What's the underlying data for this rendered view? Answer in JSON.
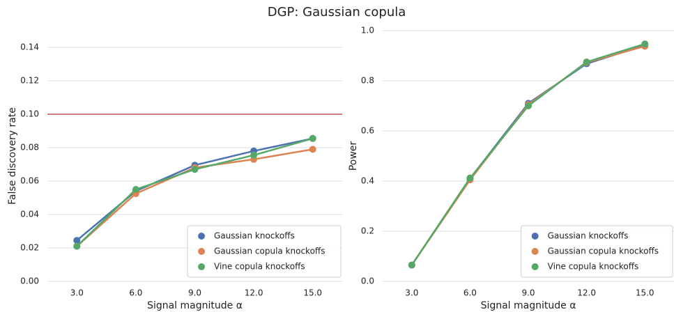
{
  "title": "DGP: Gaussian copula",
  "chart_data": [
    {
      "type": "line",
      "xlabel": "Signal magnitude α",
      "ylabel": "False discovery rate",
      "x": [
        3,
        6,
        9,
        12,
        15
      ],
      "xlim": [
        1.5,
        16.5
      ],
      "xticks": [
        {
          "value": 3,
          "label": "3.0"
        },
        {
          "value": 6,
          "label": "6.0"
        },
        {
          "value": 9,
          "label": "9.0"
        },
        {
          "value": 12,
          "label": "12.0"
        },
        {
          "value": 15,
          "label": "15.0"
        }
      ],
      "ylim": [
        0,
        0.15
      ],
      "yticks": [
        {
          "value": 0,
          "label": "0.00"
        },
        {
          "value": 0.02,
          "label": "0.02"
        },
        {
          "value": 0.04,
          "label": "0.04"
        },
        {
          "value": 0.06,
          "label": "0.06"
        },
        {
          "value": 0.08,
          "label": "0.08"
        },
        {
          "value": 0.1,
          "label": "0.10"
        },
        {
          "value": 0.12,
          "label": "0.12"
        },
        {
          "value": 0.14,
          "label": "0.14"
        }
      ],
      "grid": true,
      "legend": "lower right",
      "hline": {
        "value": 0.1,
        "color": "#c44e52"
      },
      "series": [
        {
          "name": "Gaussian knockoffs",
          "color": "#4c72b0",
          "values": [
            0.0245,
            0.054,
            0.0695,
            0.078,
            0.0855
          ]
        },
        {
          "name": "Gaussian copula knockoffs",
          "color": "#dd8452",
          "values": [
            0.021,
            0.0525,
            0.068,
            0.073,
            0.079
          ]
        },
        {
          "name": "Vine copula knockoffs",
          "color": "#55a868",
          "values": [
            0.021,
            0.055,
            0.067,
            0.0755,
            0.0855
          ]
        }
      ]
    },
    {
      "type": "line",
      "xlabel": "Signal magnitude α",
      "ylabel": "Power",
      "x": [
        3,
        6,
        9,
        12,
        15
      ],
      "xlim": [
        1.5,
        16.5
      ],
      "xticks": [
        {
          "value": 3,
          "label": "3.0"
        },
        {
          "value": 6,
          "label": "6.0"
        },
        {
          "value": 9,
          "label": "9.0"
        },
        {
          "value": 12,
          "label": "12.0"
        },
        {
          "value": 15,
          "label": "15.0"
        }
      ],
      "ylim": [
        0,
        1
      ],
      "yticks": [
        {
          "value": 0,
          "label": "0.0"
        },
        {
          "value": 0.2,
          "label": "0.2"
        },
        {
          "value": 0.4,
          "label": "0.4"
        },
        {
          "value": 0.6,
          "label": "0.6"
        },
        {
          "value": 0.8,
          "label": "0.8"
        },
        {
          "value": 1,
          "label": "1.0"
        }
      ],
      "grid": true,
      "legend": "lower right",
      "series": [
        {
          "name": "Gaussian knockoffs",
          "color": "#4c72b0",
          "values": [
            0.065,
            0.41,
            0.71,
            0.868,
            0.942
          ]
        },
        {
          "name": "Gaussian copula knockoffs",
          "color": "#dd8452",
          "values": [
            0.065,
            0.405,
            0.705,
            0.873,
            0.938
          ]
        },
        {
          "name": "Vine copula knockoffs",
          "color": "#55a868",
          "values": [
            0.065,
            0.412,
            0.7,
            0.875,
            0.947
          ]
        }
      ]
    }
  ]
}
